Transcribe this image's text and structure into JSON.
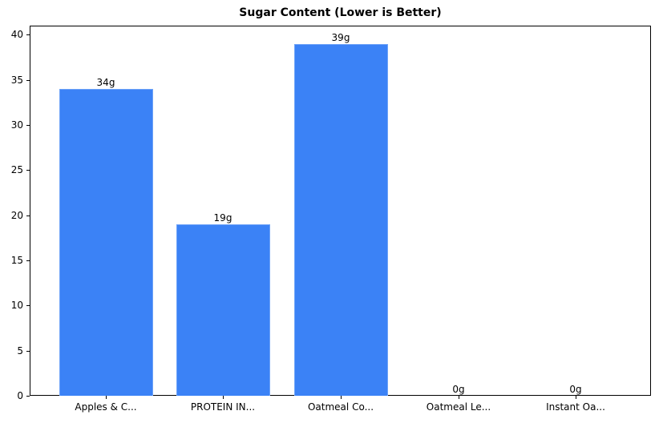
{
  "chart_data": {
    "type": "bar",
    "title": "Sugar Content (Lower is Better)",
    "xlabel": "",
    "ylabel": "",
    "categories": [
      "Apples & C...",
      "PROTEIN IN...",
      "Oatmeal Co...",
      "Oatmeal Le...",
      "Instant Oa..."
    ],
    "values": [
      34,
      19,
      39,
      0,
      0
    ],
    "value_labels": [
      "34g",
      "19g",
      "39g",
      "0g",
      "0g"
    ],
    "ylim": [
      0,
      41
    ],
    "yticks": [
      0,
      5,
      10,
      15,
      20,
      25,
      30,
      35,
      40
    ],
    "grid": false,
    "legend": null,
    "bar_color": "#3b82f6"
  }
}
